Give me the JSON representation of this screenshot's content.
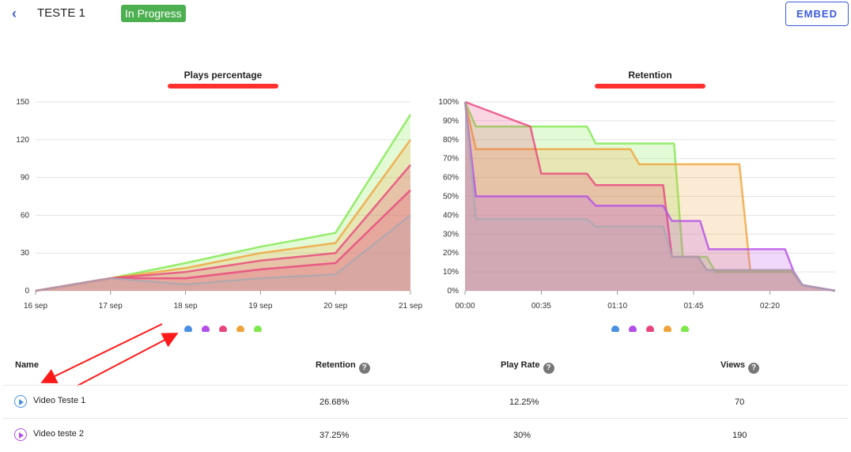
{
  "header": {
    "back_icon": "chevron-left-icon",
    "title": "TESTE 1",
    "status": "In Progress",
    "embed_label": "EMBED"
  },
  "colors": {
    "accent": "#3b5bdb",
    "status": "#4caf50",
    "series": [
      "#4a90e2",
      "#b44ee8",
      "#e8457c",
      "#f0a23a",
      "#7ee84b"
    ],
    "grey_band": "#a9a9b0"
  },
  "table": {
    "headers": [
      "Name",
      "Retention",
      "Play Rate",
      "Views"
    ],
    "rows": [
      {
        "name": "Video Teste 1",
        "retention": "26.68%",
        "play_rate": "12.25%",
        "views": "70",
        "color": "#4a90e2"
      },
      {
        "name": "Video teste 2",
        "retention": "37.25%",
        "play_rate": "30%",
        "views": "190",
        "color": "#b44ee8"
      }
    ]
  },
  "chart_data": [
    {
      "type": "area",
      "title": "Plays percentage",
      "categories": [
        "16 sep",
        "17 sep",
        "18 sep",
        "19 sep",
        "20 sep",
        "21 sep"
      ],
      "yticks": [
        "0",
        "30",
        "60",
        "90",
        "120",
        "150"
      ],
      "ylim": [
        0,
        150
      ],
      "stacked": true,
      "grid": true,
      "legend": "bottom",
      "series": [
        {
          "color": "#a9a9b0",
          "values": [
            0,
            10,
            5,
            10,
            13,
            60
          ]
        },
        {
          "color": "#e8457c",
          "values": [
            0,
            10,
            10,
            17,
            22,
            80
          ]
        },
        {
          "color": "#e8457c",
          "values": [
            0,
            10,
            15,
            24,
            30,
            100
          ]
        },
        {
          "color": "#f0a23a",
          "values": [
            0,
            10,
            18,
            30,
            38,
            120
          ]
        },
        {
          "color": "#7ee84b",
          "values": [
            0,
            10,
            22,
            35,
            46,
            140
          ]
        }
      ]
    },
    {
      "type": "area",
      "title": "Retention",
      "xticks": [
        "00:00",
        "00:35",
        "01:10",
        "01:45",
        "02:20"
      ],
      "xlim": [
        0,
        170
      ],
      "yticks": [
        "0%",
        "10%",
        "20%",
        "30%",
        "40%",
        "50%",
        "60%",
        "70%",
        "80%",
        "90%",
        "100%"
      ],
      "ylim": [
        0,
        100
      ],
      "grid": true,
      "legend": "bottom",
      "series": [
        {
          "color": "#a9a9b0",
          "points": [
            [
              0,
              100
            ],
            [
              5,
              38
            ],
            [
              56,
              38
            ],
            [
              60,
              34
            ],
            [
              91,
              34
            ],
            [
              95,
              18
            ],
            [
              107,
              18
            ],
            [
              111,
              11
            ],
            [
              150,
              11
            ],
            [
              155,
              3
            ],
            [
              170,
              0
            ]
          ]
        },
        {
          "color": "#b44ee8",
          "points": [
            [
              0,
              100
            ],
            [
              5,
              50
            ],
            [
              56,
              50
            ],
            [
              60,
              45
            ],
            [
              91,
              45
            ],
            [
              95,
              37
            ],
            [
              108,
              37
            ],
            [
              112,
              22
            ],
            [
              147,
              22
            ],
            [
              151,
              10
            ],
            [
              155,
              3
            ],
            [
              170,
              0
            ]
          ]
        },
        {
          "color": "#e8457c",
          "points": [
            [
              0,
              100
            ],
            [
              30,
              87
            ],
            [
              35,
              62
            ],
            [
              56,
              62
            ],
            [
              60,
              56
            ],
            [
              91,
              56
            ],
            [
              95,
              18
            ],
            [
              107,
              18
            ],
            [
              111,
              11
            ],
            [
              150,
              11
            ],
            [
              155,
              3
            ],
            [
              170,
              0
            ]
          ]
        },
        {
          "color": "#f0a23a",
          "points": [
            [
              0,
              100
            ],
            [
              5,
              75
            ],
            [
              76,
              75
            ],
            [
              80,
              67
            ],
            [
              126,
              67
            ],
            [
              131,
              11
            ],
            [
              150,
              11
            ],
            [
              155,
              3
            ],
            [
              170,
              0
            ]
          ]
        },
        {
          "color": "#7ee84b",
          "points": [
            [
              0,
              100
            ],
            [
              5,
              87
            ],
            [
              56,
              87
            ],
            [
              60,
              78
            ],
            [
              96,
              78
            ],
            [
              100,
              18
            ],
            [
              111,
              18
            ],
            [
              115,
              10
            ],
            [
              150,
              10
            ],
            [
              155,
              3
            ],
            [
              170,
              0
            ]
          ]
        }
      ]
    }
  ]
}
